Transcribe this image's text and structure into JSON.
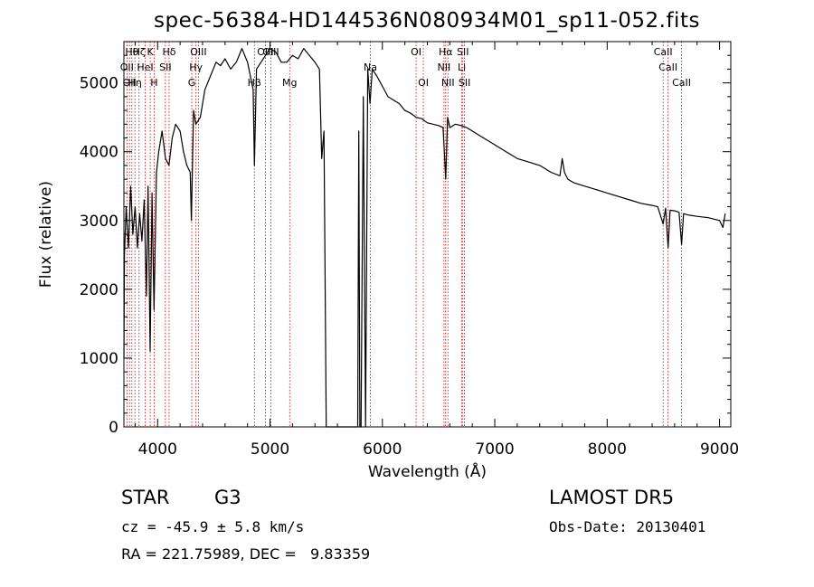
{
  "chart_data": {
    "type": "line",
    "title": "spec-56384-HD144536N080934M01_sp11-052.fits",
    "xlabel": "Wavelength (Å)",
    "ylabel": "Flux (relative)",
    "xlim": [
      3700,
      9100
    ],
    "ylim": [
      0,
      5600
    ],
    "xticks": [
      4000,
      5000,
      6000,
      7000,
      8000,
      9000
    ],
    "yticks": [
      0,
      1000,
      2000,
      3000,
      4000,
      5000
    ],
    "grid": false,
    "line_color": "#000000",
    "marker_color": "#cc0000",
    "series": [
      {
        "x": [
          3700,
          3705,
          3720,
          3740,
          3760,
          3780,
          3800,
          3820,
          3840,
          3860,
          3880,
          3900,
          3915,
          3933,
          3950,
          3968,
          3990,
          4010,
          4040,
          4070,
          4101,
          4130,
          4160,
          4200,
          4230,
          4260,
          4290,
          4300,
          4320,
          4340,
          4380,
          4420,
          4470,
          4520,
          4560,
          4600,
          4650,
          4700,
          4750,
          4800,
          4850,
          4861,
          4880,
          4920,
          4960,
          5000,
          5050,
          5100,
          5150,
          5200,
          5250,
          5300,
          5350,
          5400,
          5440,
          5460,
          5480,
          5500,
          5520,
          5560,
          5600,
          5650,
          5700,
          5750,
          5780,
          5790,
          5800,
          5810,
          5830,
          5850,
          5870,
          5890,
          5910,
          5950,
          6000,
          6050,
          6100,
          6150,
          6200,
          6250,
          6300,
          6350,
          6400,
          6450,
          6500,
          6540,
          6563,
          6580,
          6600,
          6650,
          6700,
          6750,
          6800,
          6850,
          6900,
          6950,
          7000,
          7100,
          7200,
          7300,
          7400,
          7500,
          7580,
          7600,
          7620,
          7650,
          7700,
          7800,
          7900,
          8000,
          8100,
          8200,
          8300,
          8400,
          8450,
          8498,
          8520,
          8542,
          8560,
          8600,
          8640,
          8662,
          8680,
          8720,
          8800,
          8900,
          9000,
          9030,
          9050
        ],
        "y": [
          1000,
          2500,
          3200,
          2600,
          3500,
          2800,
          3200,
          2600,
          3100,
          2700,
          3300,
          1900,
          3500,
          1100,
          3400,
          1700,
          3700,
          4000,
          4300,
          3900,
          3800,
          4200,
          4400,
          4300,
          4000,
          3800,
          3700,
          3000,
          4600,
          4400,
          4500,
          4900,
          5100,
          5300,
          5250,
          5350,
          5200,
          5300,
          5500,
          5300,
          4900,
          3800,
          5200,
          5300,
          5400,
          5500,
          5450,
          5300,
          5300,
          5400,
          5350,
          5500,
          5400,
          5300,
          5200,
          3900,
          4300,
          0,
          0,
          0,
          0,
          0,
          0,
          0,
          0,
          4300,
          0,
          0,
          4800,
          0,
          5200,
          4700,
          5200,
          5100,
          4950,
          4800,
          4750,
          4700,
          4600,
          4560,
          4500,
          4480,
          4420,
          4400,
          4380,
          4350,
          3600,
          4500,
          4350,
          4400,
          4380,
          4350,
          4300,
          4250,
          4200,
          4150,
          4100,
          4000,
          3900,
          3850,
          3800,
          3700,
          3650,
          3900,
          3700,
          3600,
          3550,
          3500,
          3450,
          3400,
          3350,
          3300,
          3250,
          3220,
          3200,
          2950,
          3180,
          2600,
          3150,
          3140,
          3120,
          2650,
          3100,
          3080,
          3060,
          3040,
          3000,
          2900,
          3100
        ]
      }
    ],
    "line_markers": [
      {
        "x": 3727,
        "label": "OII",
        "row": 2
      },
      {
        "x": 3750,
        "label": "OII",
        "row": 3
      },
      {
        "x": 3771,
        "label": "Hθ",
        "row": 1
      },
      {
        "x": 3798,
        "label": "Hη",
        "row": 3
      },
      {
        "x": 3835,
        "label": "Hζ",
        "row": 1
      },
      {
        "x": 3889,
        "label": "HeI",
        "row": 2
      },
      {
        "x": 3934,
        "label": "K",
        "row": 1
      },
      {
        "x": 3969,
        "label": "H",
        "row": 3
      },
      {
        "x": 4069,
        "label": "SII",
        "row": 2
      },
      {
        "x": 4102,
        "label": "Hδ",
        "row": 1
      },
      {
        "x": 4304,
        "label": "G",
        "row": 3
      },
      {
        "x": 4341,
        "label": "Hγ",
        "row": 2
      },
      {
        "x": 4363,
        "label": "OIII",
        "row": 1
      },
      {
        "x": 4861,
        "label": "Hβ",
        "row": 3
      },
      {
        "x": 4959,
        "label": "OIII",
        "row": 1
      },
      {
        "x": 5007,
        "label": "OIII",
        "row": 1
      },
      {
        "x": 5175,
        "label": "Mg",
        "row": 3
      },
      {
        "x": 5893,
        "label": "Na",
        "row": 2
      },
      {
        "x": 6300,
        "label": "OI",
        "row": 1
      },
      {
        "x": 6364,
        "label": "OI",
        "row": 3
      },
      {
        "x": 6548,
        "label": "NII",
        "row": 2
      },
      {
        "x": 6563,
        "label": "Hα",
        "row": 1
      },
      {
        "x": 6583,
        "label": "NII",
        "row": 3
      },
      {
        "x": 6707,
        "label": "Li",
        "row": 2
      },
      {
        "x": 6716,
        "label": "SII",
        "row": 1
      },
      {
        "x": 6731,
        "label": "SII",
        "row": 3
      },
      {
        "x": 8498,
        "label": "CaII",
        "row": 1
      },
      {
        "x": 8542,
        "label": "CaII",
        "row": 2
      },
      {
        "x": 8662,
        "label": "CaII",
        "row": 3
      }
    ]
  },
  "info": {
    "object_class": "STAR",
    "subclass": "G3",
    "survey": "LAMOST DR5",
    "cz": "cz = -45.9 ± 5.8 km/s",
    "obs_date": "Obs-Date: 20130401",
    "ra_dec": "RA = 221.75989, DEC =   9.83359"
  }
}
